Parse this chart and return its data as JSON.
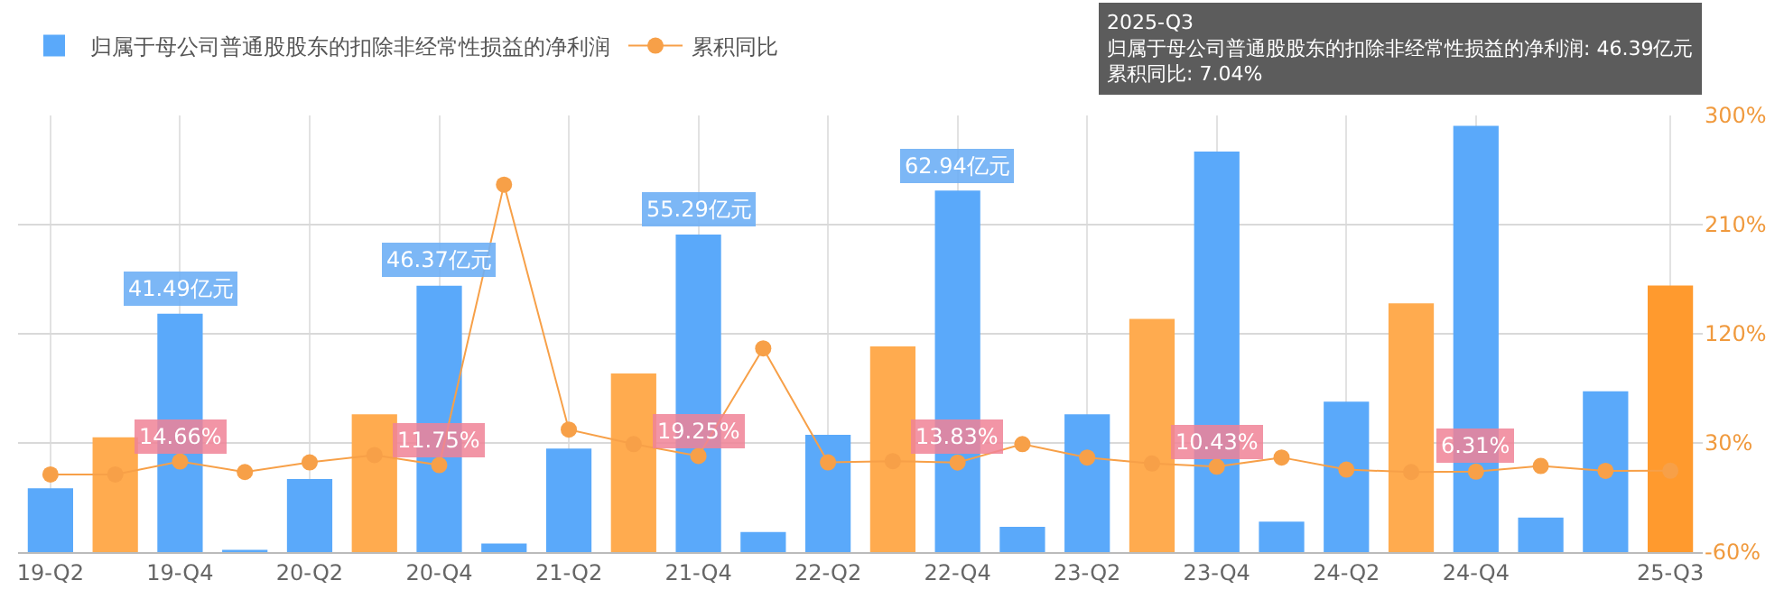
{
  "chart_data": {
    "type": "bar",
    "categories": [
      "19-Q2",
      null,
      "19-Q4",
      null,
      "20-Q2",
      null,
      "20-Q4",
      null,
      "21-Q2",
      null,
      "21-Q4",
      null,
      "22-Q2",
      null,
      "22-Q4",
      null,
      "23-Q2",
      null,
      "23-Q4",
      null,
      "24-Q2",
      null,
      "24-Q4",
      null,
      null,
      "25-Q3"
    ],
    "series": [
      {
        "name": "归属于母公司普通股股东的扣除非经常性损益的净利润",
        "colors": [
          "#5aa9fa",
          "#ffab4f",
          "#5aa9fa",
          "#5aa9fa",
          "#5aa9fa",
          "#ffab4f",
          "#5aa9fa",
          "#5aa9fa",
          "#5aa9fa",
          "#ffab4f",
          "#5aa9fa",
          "#5aa9fa",
          "#5aa9fa",
          "#ffab4f",
          "#5aa9fa",
          "#5aa9fa",
          "#5aa9fa",
          "#ffab4f",
          "#5aa9fa",
          "#5aa9fa",
          "#5aa9fa",
          "#ffab4f",
          "#5aa9fa",
          "#5aa9fa",
          "#5aa9fa",
          "#ff9a2e"
        ],
        "values": [
          11.1,
          20.0,
          41.49,
          0.4,
          12.7,
          24.0,
          46.37,
          1.5,
          18.0,
          31.1,
          55.29,
          3.5,
          20.4,
          35.8,
          62.94,
          4.4,
          24.0,
          40.6,
          69.7,
          5.3,
          26.2,
          43.3,
          74.2,
          6.0,
          28.0,
          46.39
        ],
        "value_labels": [
          null,
          null,
          "41.49亿元",
          null,
          null,
          null,
          "46.37亿元",
          null,
          null,
          null,
          "55.29亿元",
          null,
          null,
          null,
          "62.94亿元",
          null,
          null,
          null,
          null,
          null,
          null,
          null,
          null,
          null,
          null,
          null
        ]
      },
      {
        "name": "累积同比",
        "type": "line",
        "axis": "y2",
        "color": "#f7a048",
        "values": [
          4,
          4,
          14.66,
          6,
          14,
          20,
          11.75,
          243,
          41,
          29,
          19.25,
          108,
          14,
          15,
          13.83,
          29,
          18,
          13,
          10.43,
          18,
          8,
          6,
          6.31,
          11,
          7,
          7.04
        ],
        "value_labels": [
          null,
          null,
          "14.66%",
          null,
          null,
          null,
          "11.75%",
          null,
          null,
          null,
          "19.25%",
          null,
          null,
          null,
          "13.83%",
          null,
          null,
          null,
          "10.43%",
          null,
          null,
          null,
          "6.31%",
          null,
          null,
          null
        ]
      }
    ],
    "ylim": [
      0,
      76
    ],
    "y2lim": [
      -60,
      300
    ],
    "y2ticks": [
      {
        "value": -60,
        "label": "-60%"
      },
      {
        "value": 30,
        "label": "30%"
      },
      {
        "value": 120,
        "label": "120%"
      },
      {
        "value": 210,
        "label": "210%"
      },
      {
        "value": 300,
        "label": "300%"
      }
    ],
    "annotations": [
      "2025-Q3",
      "归属于母公司普通股股东的扣除非经常性损益的净利润: 46.39亿元",
      "累积同比: 7.04%"
    ],
    "grid": true,
    "legend": "top left",
    "marker": "circle"
  }
}
